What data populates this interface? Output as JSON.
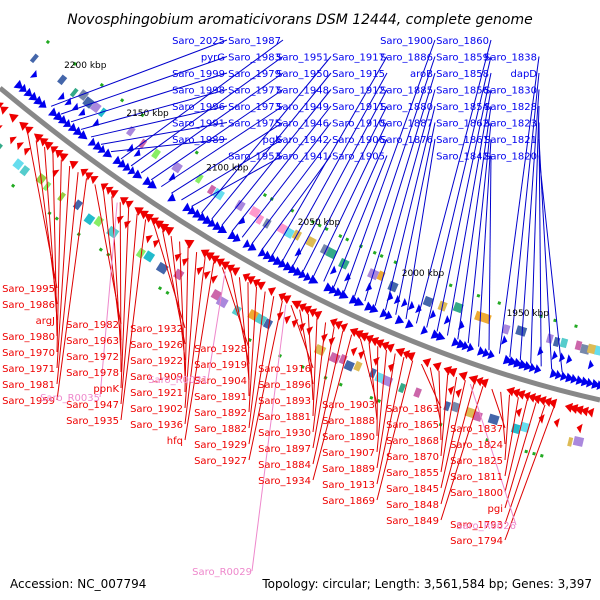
{
  "title": "Novosphingobium aromaticivorans DSM 12444, complete genome",
  "footer": {
    "accession": "Accession: NC_007794",
    "summary": "Topology: circular; Length: 3,561,584 bp; Genes: 3,397"
  },
  "colors": {
    "forward_strand": "#0000ee",
    "reverse_strand": "#ee0000",
    "rna": "#ee88cc",
    "backbone": "#888888",
    "label_line_forward": "#0000cc",
    "label_line_reverse": "#dd0000"
  },
  "scale_labels": [
    {
      "text": "2200 kbp"
    },
    {
      "text": "2150 kbp"
    },
    {
      "text": "2100 kbp"
    },
    {
      "text": "2050 kbp"
    },
    {
      "text": "2000 kbp"
    },
    {
      "text": "1950 kbp"
    }
  ],
  "forward_labels": [
    "Saro_2025",
    "pyrG",
    "Saro_1999",
    "Saro_1998",
    "Saro_1996",
    "Saro_1991",
    "Saro_1989",
    "Saro_1987",
    "Saro_1983",
    "Saro_1979",
    "Saro_1977",
    "Saro_1973",
    "Saro_1975",
    "pgk",
    "Saro_1953",
    "Saro_1951",
    "Saro_1950",
    "Saro_1948",
    "Saro_1949",
    "Saro_1946",
    "Saro_1942",
    "Saro_1941",
    "Saro_1917",
    "Saro_1915",
    "Saro_1912",
    "Saro_1911",
    "Saro_1910",
    "Saro_1906",
    "Saro_1905",
    "Saro_1900",
    "Saro_1886",
    "aroB",
    "Saro_1885",
    "Saro_1880",
    "Saro_1887",
    "Saro_1876",
    "Saro_1860",
    "Saro_1859",
    "Saro_1858",
    "Saro_1856",
    "Saro_1854",
    "Saro_1862",
    "Saro_1861",
    "Saro_1842",
    "Saro_1838",
    "dapD",
    "Saro_1830",
    "Saro_1828",
    "Saro_1823",
    "Saro_1821",
    "Saro_1820"
  ],
  "reverse_labels": [
    "Saro_1995",
    "Saro_1986",
    "argJ",
    "Saro_1980",
    "Saro_1970",
    "Saro_1971",
    "Saro_1981",
    "Saro_1959",
    "Saro_1982",
    "Saro_1963",
    "Saro_1972",
    "Saro_1978",
    "ppnK",
    "Saro_1947",
    "Saro_1935",
    "Saro_1932",
    "Saro_1926",
    "Saro_1922",
    "Saro_1909",
    "Saro_1921",
    "Saro_1902",
    "Saro_1936",
    "hfq",
    "Saro_1928",
    "Saro_1919",
    "Saro_1904",
    "Saro_1891",
    "Saro_1892",
    "Saro_1882",
    "Saro_1929",
    "Saro_1927",
    "Saro_1916",
    "Saro_1896",
    "Saro_1893",
    "Saro_1881",
    "Saro_1930",
    "Saro_1897",
    "Saro_1884",
    "Saro_1934",
    "Saro_1903",
    "Saro_1888",
    "Saro_1890",
    "Saro_1907",
    "Saro_1889",
    "Saro_1913",
    "Saro_1869",
    "Saro_1863",
    "Saro_1865",
    "Saro_1868",
    "Saro_1870",
    "Saro_1855",
    "Saro_1845",
    "Saro_1848",
    "Saro_1849",
    "Saro_1837",
    "Saro_1824",
    "Saro_1825",
    "Saro_1811",
    "Saro_1800",
    "pgi",
    "Saro_1793",
    "Saro_1794"
  ],
  "rna_labels": [
    "Saro_R0031",
    "Saro_R0035",
    "Saro_R0026",
    "Saro_R0029"
  ]
}
